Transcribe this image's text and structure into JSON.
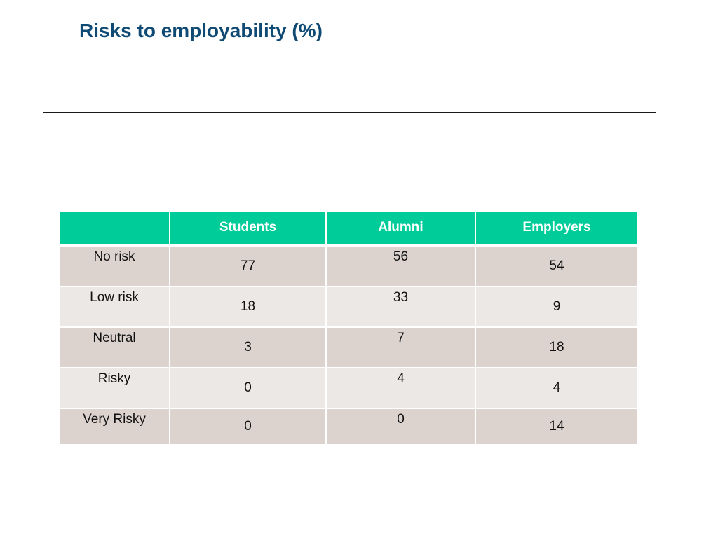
{
  "title": "Risks to employability (%)",
  "table": {
    "columns": [
      "",
      "Students",
      "Alumni",
      "Employers"
    ],
    "rows": [
      {
        "label": "No risk",
        "students": "77",
        "alumni": "56",
        "employers": "54"
      },
      {
        "label": "Low risk",
        "students": "18",
        "alumni": "33",
        "employers": "9"
      },
      {
        "label": "Neutral",
        "students": "3",
        "alumni": "7",
        "employers": "18"
      },
      {
        "label": "Risky",
        "students": "0",
        "alumni": "4",
        "employers": "4"
      },
      {
        "label": "Very Risky",
        "students": "0",
        "alumni": "0",
        "employers": "14"
      }
    ]
  },
  "colors": {
    "title": "#0f4a74",
    "header_bg": "#00cc99",
    "header_text": "#ffffff",
    "row_odd_bg": "#dcd3cf",
    "row_even_bg": "#ece8e6"
  }
}
